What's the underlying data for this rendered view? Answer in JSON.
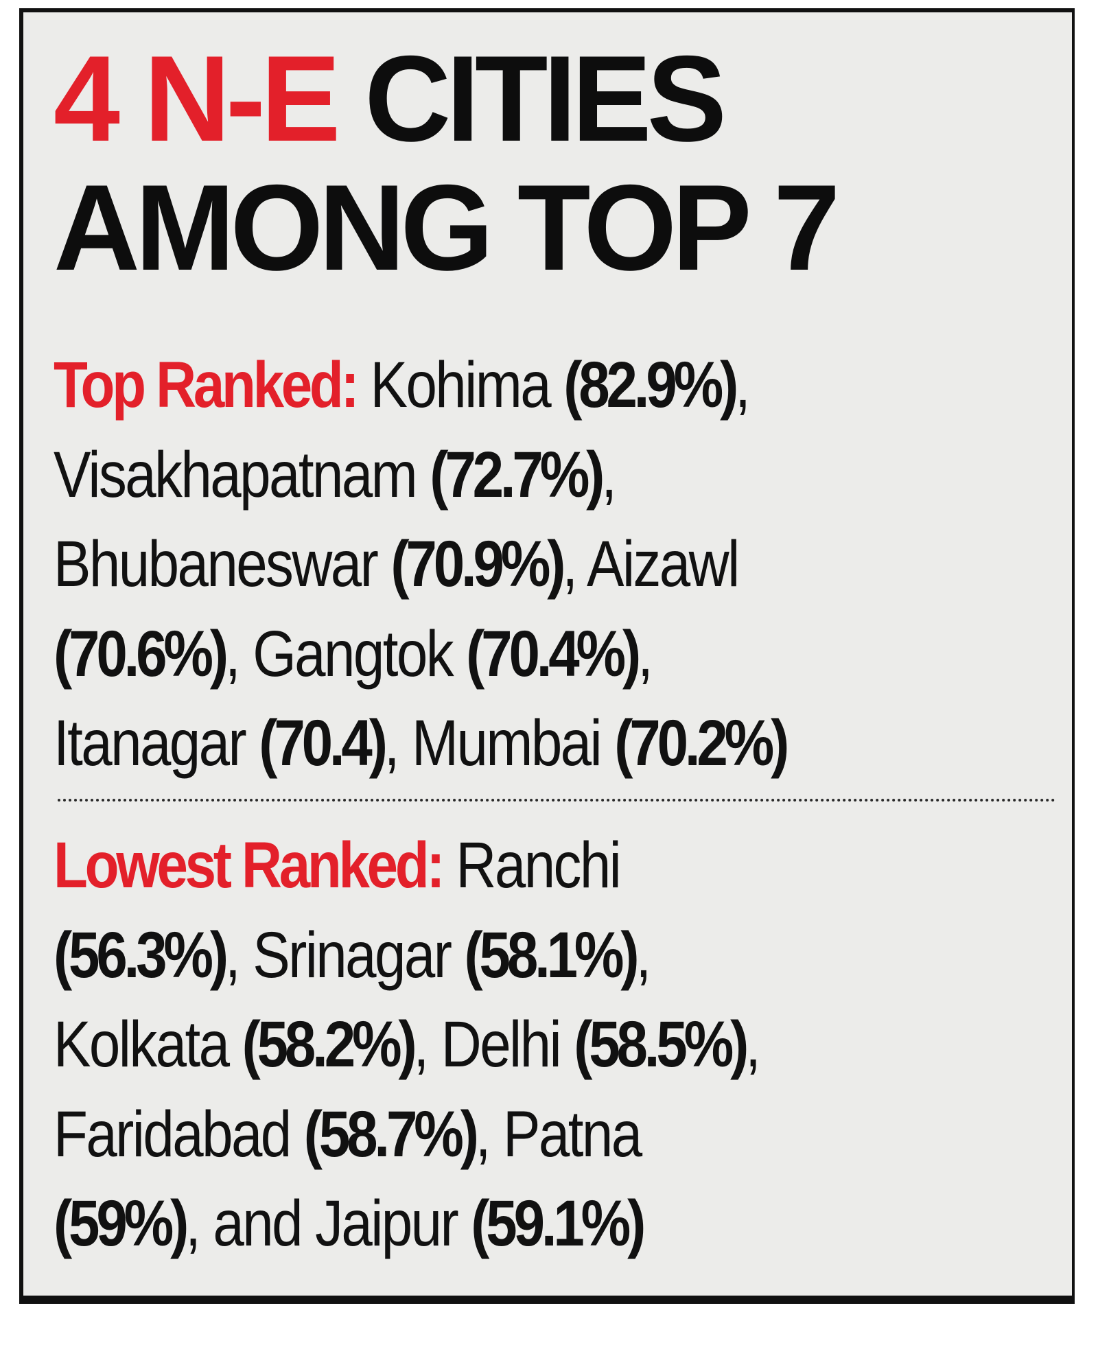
{
  "headline": {
    "line1_red": "4 N-E",
    "line1_black": " CITIES",
    "line2": "AMONG TOP 7"
  },
  "top_ranked": {
    "label": "Top Ranked:",
    "entries": [
      {
        "city": "Kohima",
        "value": "(82.9%)"
      },
      {
        "city": "Visakhapatnam",
        "value": "(72.7%)"
      },
      {
        "city": "Bhubaneswar",
        "value": "(70.9%)"
      },
      {
        "city": "Aizawl",
        "value": "(70.6%)"
      },
      {
        "city": "Gangtok",
        "value": "(70.4%)"
      },
      {
        "city": "Itanagar",
        "value": "(70.4)"
      },
      {
        "city": "Mumbai",
        "value": "(70.2%)"
      }
    ]
  },
  "lowest_ranked": {
    "label": "Lowest Ranked:",
    "entries": [
      {
        "city": "Ranchi",
        "value": "(56.3%)"
      },
      {
        "city": "Srinagar",
        "value": "(58.1%)"
      },
      {
        "city": "Kolkata",
        "value": "(58.2%)"
      },
      {
        "city": "Delhi",
        "value": "(58.5%)"
      },
      {
        "city": "Faridabad",
        "value": "(58.7%)"
      },
      {
        "city": "Patna",
        "value": "(59%)"
      },
      {
        "city": "and Jaipur",
        "value": "(59.1%)"
      }
    ]
  },
  "colors": {
    "accent_red": "#e3202a",
    "text": "#111111",
    "background": "#ececea"
  }
}
